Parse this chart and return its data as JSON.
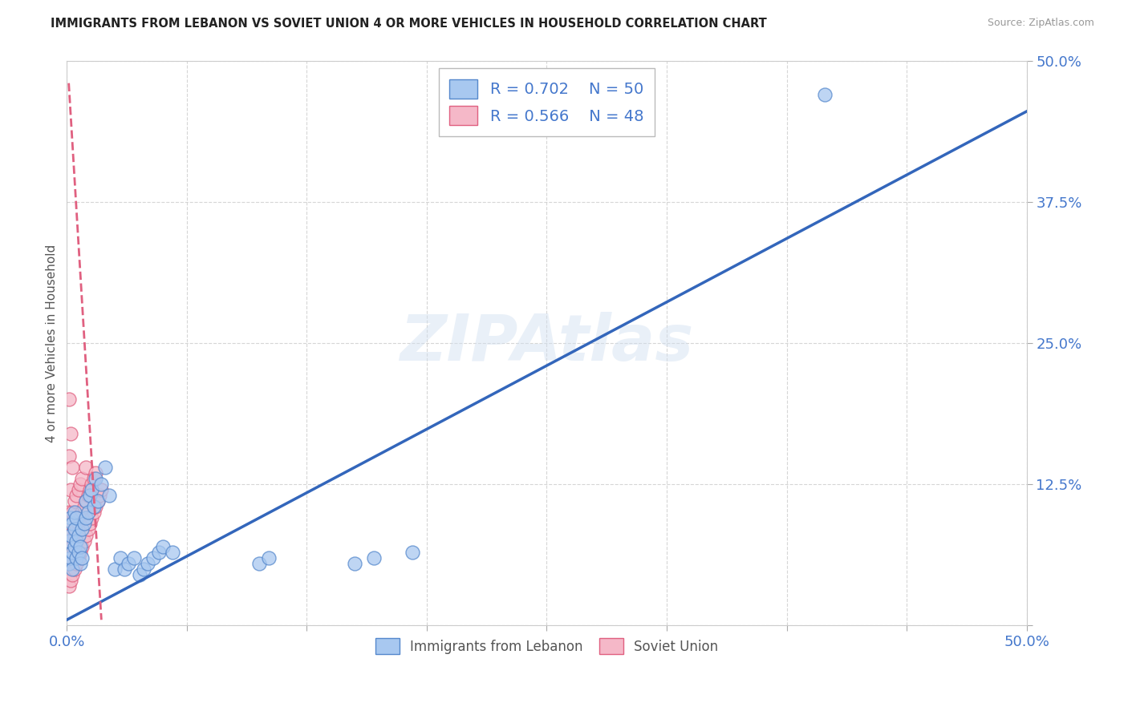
{
  "title": "IMMIGRANTS FROM LEBANON VS SOVIET UNION 4 OR MORE VEHICLES IN HOUSEHOLD CORRELATION CHART",
  "source": "Source: ZipAtlas.com",
  "ylabel": "4 or more Vehicles in Household",
  "xlim": [
    0,
    0.5
  ],
  "ylim": [
    0,
    0.5
  ],
  "legend_R1": "R = 0.702",
  "legend_N1": "N = 50",
  "legend_R2": "R = 0.566",
  "legend_N2": "N = 48",
  "legend_label1": "Immigrants from Lebanon",
  "legend_label2": "Soviet Union",
  "blue_fill": "#A8C8F0",
  "blue_edge": "#5588CC",
  "pink_fill": "#F5B8C8",
  "pink_edge": "#E06080",
  "blue_line": "#3366BB",
  "pink_line": "#E06080",
  "background_color": "#FFFFFF",
  "watermark": "ZIPAtlas",
  "lebanon_x": [
    0.001,
    0.001,
    0.002,
    0.002,
    0.002,
    0.003,
    0.003,
    0.003,
    0.004,
    0.004,
    0.004,
    0.005,
    0.005,
    0.005,
    0.006,
    0.006,
    0.007,
    0.007,
    0.008,
    0.008,
    0.009,
    0.01,
    0.01,
    0.011,
    0.012,
    0.013,
    0.014,
    0.015,
    0.016,
    0.018,
    0.02,
    0.022,
    0.025,
    0.028,
    0.03,
    0.032,
    0.035,
    0.038,
    0.04,
    0.042,
    0.045,
    0.048,
    0.05,
    0.055,
    0.1,
    0.105,
    0.15,
    0.16,
    0.18,
    0.395
  ],
  "lebanon_y": [
    0.055,
    0.075,
    0.06,
    0.08,
    0.095,
    0.05,
    0.065,
    0.09,
    0.07,
    0.085,
    0.1,
    0.06,
    0.075,
    0.095,
    0.065,
    0.08,
    0.055,
    0.07,
    0.06,
    0.085,
    0.09,
    0.095,
    0.11,
    0.1,
    0.115,
    0.12,
    0.105,
    0.13,
    0.11,
    0.125,
    0.14,
    0.115,
    0.05,
    0.06,
    0.05,
    0.055,
    0.06,
    0.045,
    0.05,
    0.055,
    0.06,
    0.065,
    0.07,
    0.065,
    0.055,
    0.06,
    0.055,
    0.06,
    0.065,
    0.47
  ],
  "soviet_x": [
    0.001,
    0.001,
    0.001,
    0.001,
    0.001,
    0.001,
    0.002,
    0.002,
    0.002,
    0.002,
    0.002,
    0.003,
    0.003,
    0.003,
    0.003,
    0.004,
    0.004,
    0.004,
    0.005,
    0.005,
    0.005,
    0.006,
    0.006,
    0.006,
    0.007,
    0.007,
    0.007,
    0.008,
    0.008,
    0.008,
    0.009,
    0.009,
    0.01,
    0.01,
    0.01,
    0.011,
    0.011,
    0.012,
    0.012,
    0.013,
    0.013,
    0.014,
    0.014,
    0.015,
    0.015,
    0.016,
    0.017,
    0.018
  ],
  "soviet_y": [
    0.035,
    0.055,
    0.08,
    0.1,
    0.15,
    0.2,
    0.04,
    0.06,
    0.09,
    0.12,
    0.17,
    0.045,
    0.07,
    0.1,
    0.14,
    0.05,
    0.08,
    0.11,
    0.055,
    0.085,
    0.115,
    0.06,
    0.09,
    0.12,
    0.065,
    0.095,
    0.125,
    0.07,
    0.1,
    0.13,
    0.075,
    0.105,
    0.08,
    0.11,
    0.14,
    0.085,
    0.115,
    0.09,
    0.12,
    0.095,
    0.125,
    0.1,
    0.13,
    0.105,
    0.135,
    0.11,
    0.115,
    0.12
  ],
  "blue_line_x": [
    0.0,
    0.5
  ],
  "blue_line_y": [
    0.005,
    0.455
  ],
  "pink_line_x": [
    0.001,
    0.018
  ],
  "pink_line_y": [
    0.48,
    0.005
  ]
}
